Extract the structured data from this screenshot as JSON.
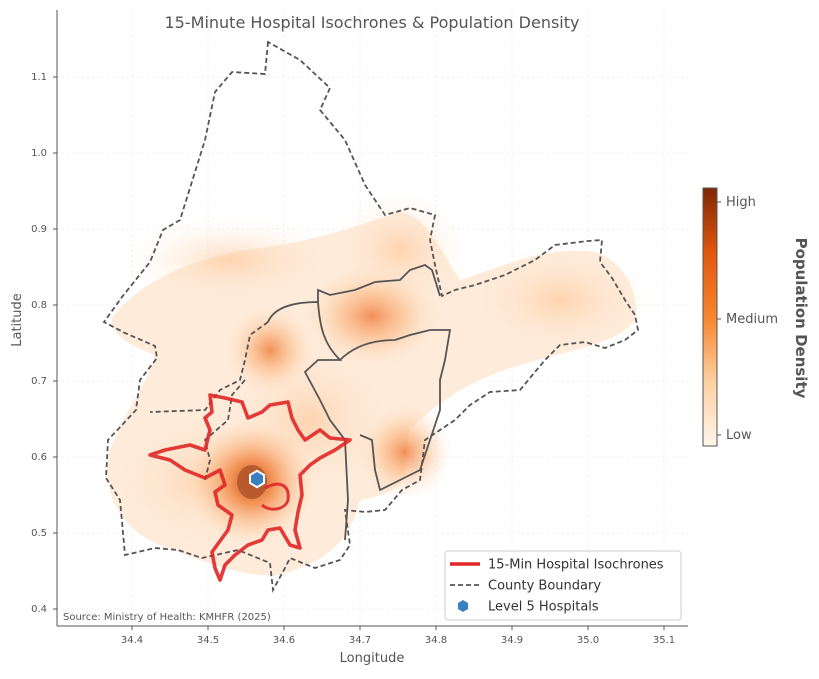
{
  "title": "15-Minute Hospital Isochrones & Population Density",
  "xlabel": "Longitude",
  "ylabel": "Latitude",
  "source": "Source: Ministry of Health: KMHFR (2025)",
  "x_ticks": [
    "34.4",
    "34.5",
    "34.6",
    "34.7",
    "34.8",
    "34.9",
    "35.0",
    "35.1"
  ],
  "y_ticks": [
    "0.4",
    "0.5",
    "0.6",
    "0.7",
    "0.8",
    "0.9",
    "1.0",
    "1.1"
  ],
  "colorbar": {
    "title": "Population Density",
    "high": "High",
    "medium": "Medium",
    "low": "Low"
  },
  "legend": {
    "isochrone": "15-Min Hospital Isochrones",
    "boundary": "County Boundary",
    "hospitals": "Level 5 Hospitals"
  },
  "colors": {
    "isochrone": "#e02626",
    "boundary": "#555555",
    "hospital": "#3a7fc0",
    "density_dark": "#7f2704",
    "density_mid": "#f16913",
    "density_low": "#fff5eb"
  },
  "map_data": {
    "hospital_points": [
      {
        "lon": 34.563,
        "lat": 0.567
      }
    ],
    "density_hotspots": [
      {
        "lon": 34.555,
        "lat": 0.57,
        "level": "high"
      },
      {
        "lon": 34.72,
        "lat": 0.785,
        "level": "medium"
      },
      {
        "lon": 34.765,
        "lat": 0.61,
        "level": "medium"
      },
      {
        "lon": 34.585,
        "lat": 0.74,
        "level": "medium"
      }
    ]
  }
}
